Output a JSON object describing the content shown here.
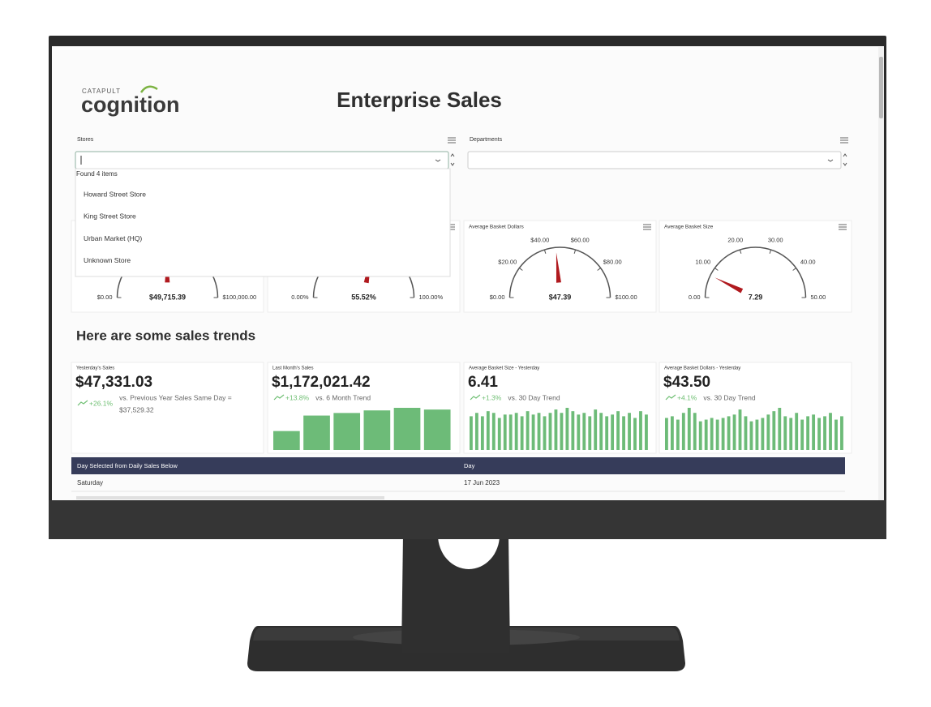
{
  "header": {
    "brand_small": "CATAPULT",
    "brand": "cognition",
    "title": "Enterprise Sales"
  },
  "filters": [
    {
      "label": "Stores"
    },
    {
      "label": "Departments"
    }
  ],
  "dropdown": {
    "status": "Found 4 items",
    "items": [
      "Howard Street Store",
      "King Street Store",
      "Urban Market (HQ)",
      "Unknown Store"
    ]
  },
  "gauges": [
    {
      "range": [
        0,
        100000
      ],
      "ticks": [
        {
          "value": 0,
          "label": "$0.00"
        },
        {
          "value": 100000,
          "label": "$100,000.00"
        }
      ],
      "value": 49715.39,
      "value_label": "$49,715.39"
    },
    {
      "range": [
        0,
        100
      ],
      "ticks": [
        {
          "value": 0,
          "label": "0.00%"
        },
        {
          "value": 100,
          "label": "100.00%"
        }
      ],
      "value": 55.52,
      "value_label": "55.52%"
    },
    {
      "title": "Average Basket Dollars",
      "range": [
        0,
        100
      ],
      "ticks": [
        {
          "value": 0,
          "label": "$0.00"
        },
        {
          "value": 20,
          "label": "$20.00"
        },
        {
          "value": 40,
          "label": "$40.00"
        },
        {
          "value": 60,
          "label": "$60.00"
        },
        {
          "value": 80,
          "label": "$80.00"
        },
        {
          "value": 100,
          "label": "$100.00"
        }
      ],
      "value": 47.39,
      "value_label": "$47.39"
    },
    {
      "title": "Average Basket Size",
      "range": [
        0,
        50
      ],
      "ticks": [
        {
          "value": 0,
          "label": "0.00"
        },
        {
          "value": 10,
          "label": "10.00"
        },
        {
          "value": 20,
          "label": "20.00"
        },
        {
          "value": 30,
          "label": "30.00"
        },
        {
          "value": 40,
          "label": "40.00"
        },
        {
          "value": 50,
          "label": "50.00"
        }
      ],
      "value": 7.29,
      "value_label": "7.29"
    }
  ],
  "section_title": "Here are some sales trends",
  "kpis": [
    {
      "title": "Yesterday's Sales",
      "value": "$47,331.03",
      "change": "+26.1%",
      "comparison": "vs. Previous Year Sales Same Day =",
      "comparison_value": "$37,529.32"
    },
    {
      "title": "Last Month's Sales",
      "value": "$1,172,021.42",
      "change": "+13.8%",
      "comparison": "vs. 6 Month Trend",
      "bars": [
        22,
        40,
        43,
        46,
        49,
        47
      ]
    },
    {
      "title": "Average Basket Size - Yesterday",
      "value": "6.41",
      "change": "+1.3%",
      "comparison": "vs. 30 Day Trend",
      "bars": [
        40,
        44,
        40,
        46,
        44,
        38,
        42,
        42,
        44,
        40,
        46,
        42,
        44,
        40,
        44,
        48,
        44,
        50,
        46,
        42,
        44,
        40,
        48,
        44,
        40,
        42,
        46,
        40,
        44,
        38,
        46,
        42
      ]
    },
    {
      "title": "Average Basket Dollars - Yesterday",
      "value": "$43.50",
      "change": "+4.1%",
      "comparison": "vs. 30 Day Trend",
      "bars": [
        38,
        40,
        36,
        44,
        50,
        44,
        34,
        36,
        38,
        36,
        38,
        40,
        42,
        48,
        40,
        34,
        36,
        38,
        42,
        46,
        50,
        40,
        38,
        44,
        36,
        40,
        42,
        38,
        40,
        44,
        36,
        40
      ]
    }
  ],
  "table": {
    "headers": [
      "Day Selected from Daily Sales Below",
      "Day"
    ],
    "rows": [
      [
        "Saturday",
        "17 Jun 2023"
      ]
    ]
  }
}
